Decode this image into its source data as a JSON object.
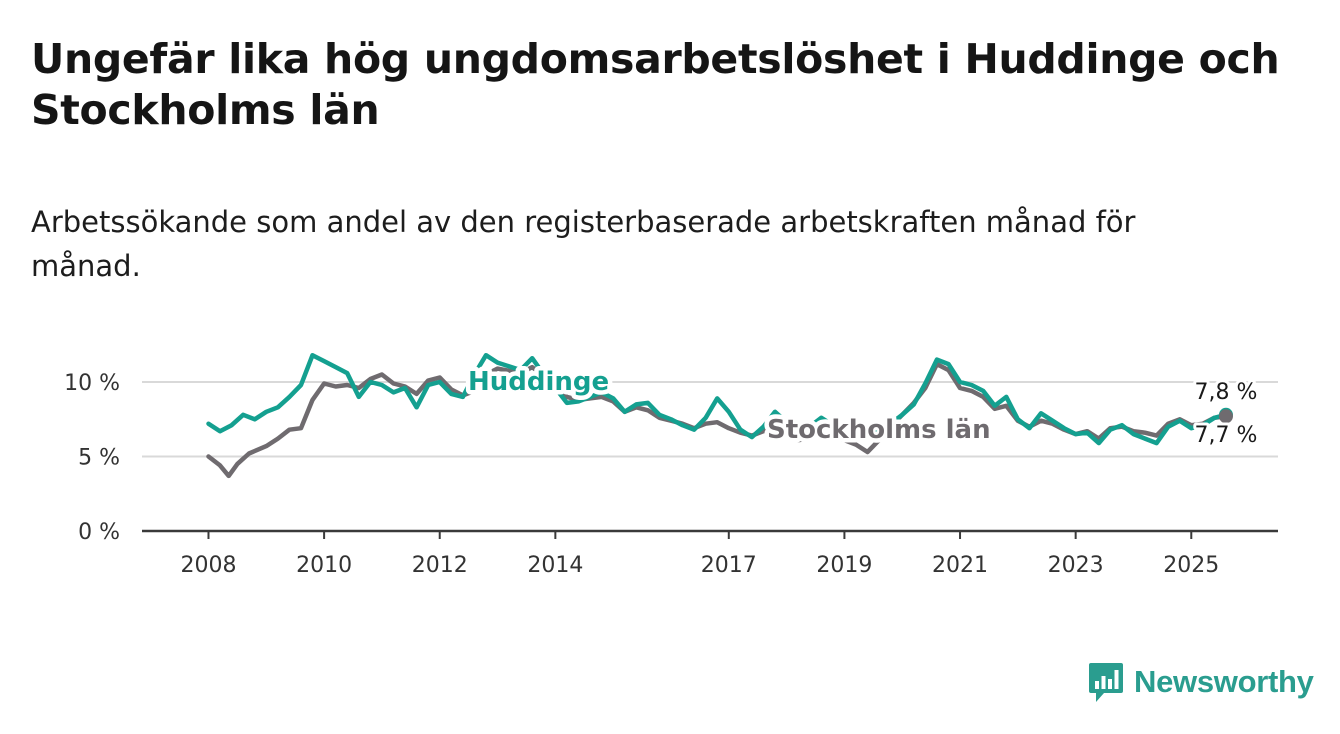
{
  "title": "Ungefär lika hög ungdomsarbetslöshet i Huddinge och Stockholms län",
  "subtitle": "Arbetssökande som andel av den registerbaserade arbetskraften månad för månad.",
  "brand": {
    "name": "Newsworthy",
    "icon": "bar-chart-logo-icon",
    "color": "#2a9d8f"
  },
  "chart_data": {
    "type": "line",
    "x_unit": "year",
    "xlim": [
      2006.85,
      2026.5
    ],
    "ylim": [
      0,
      10
    ],
    "x_ticks": [
      {
        "value": 2008,
        "label": "2008"
      },
      {
        "value": 2010,
        "label": "2010"
      },
      {
        "value": 2012,
        "label": "2012"
      },
      {
        "value": 2014,
        "label": "2014"
      },
      {
        "value": 2017,
        "label": "2017"
      },
      {
        "value": 2019,
        "label": "2019"
      },
      {
        "value": 2021,
        "label": "2021"
      },
      {
        "value": 2023,
        "label": "2023"
      },
      {
        "value": 2025,
        "label": "2025"
      }
    ],
    "y_ticks": [
      {
        "value": 0,
        "label": "0 %"
      },
      {
        "value": 5,
        "label": "5 %"
      },
      {
        "value": 10,
        "label": "10 %"
      }
    ],
    "grid": true,
    "series": [
      {
        "name": "Huddinge",
        "label": "Huddinge",
        "color": "#14a090",
        "end_label": "7,8 %",
        "points": [
          [
            2008.0,
            7.2
          ],
          [
            2008.2,
            6.7
          ],
          [
            2008.4,
            7.1
          ],
          [
            2008.6,
            7.8
          ],
          [
            2008.8,
            7.5
          ],
          [
            2009.0,
            8.0
          ],
          [
            2009.2,
            8.3
          ],
          [
            2009.4,
            9.0
          ],
          [
            2009.6,
            9.8
          ],
          [
            2009.8,
            11.8
          ],
          [
            2010.0,
            11.4
          ],
          [
            2010.2,
            11.0
          ],
          [
            2010.4,
            10.6
          ],
          [
            2010.6,
            9.0
          ],
          [
            2010.8,
            10.0
          ],
          [
            2011.0,
            9.8
          ],
          [
            2011.2,
            9.3
          ],
          [
            2011.4,
            9.6
          ],
          [
            2011.6,
            8.3
          ],
          [
            2011.8,
            9.8
          ],
          [
            2012.0,
            10.0
          ],
          [
            2012.2,
            9.2
          ],
          [
            2012.4,
            9.0
          ],
          [
            2012.6,
            10.5
          ],
          [
            2012.8,
            11.8
          ],
          [
            2013.0,
            11.3
          ],
          [
            2013.4,
            10.8
          ],
          [
            2013.6,
            11.6
          ],
          [
            2013.8,
            10.5
          ],
          [
            2014.0,
            9.6
          ],
          [
            2014.2,
            8.6
          ],
          [
            2014.4,
            8.7
          ],
          [
            2014.6,
            9.0
          ],
          [
            2014.8,
            9.3
          ],
          [
            2015.0,
            8.9
          ],
          [
            2015.2,
            8.0
          ],
          [
            2015.4,
            8.5
          ],
          [
            2015.6,
            8.6
          ],
          [
            2015.8,
            7.8
          ],
          [
            2016.0,
            7.5
          ],
          [
            2016.2,
            7.1
          ],
          [
            2016.4,
            6.8
          ],
          [
            2016.6,
            7.6
          ],
          [
            2016.8,
            8.9
          ],
          [
            2017.0,
            8.0
          ],
          [
            2017.2,
            6.8
          ],
          [
            2017.4,
            6.3
          ],
          [
            2017.6,
            7.0
          ],
          [
            2017.8,
            8.0
          ],
          [
            2018.0,
            7.3
          ],
          [
            2018.2,
            7.0
          ],
          [
            2018.4,
            7.0
          ],
          [
            2018.6,
            7.6
          ],
          [
            2018.8,
            7.1
          ],
          [
            2019.0,
            7.1
          ],
          [
            2019.2,
            6.9
          ],
          [
            2019.4,
            6.8
          ],
          [
            2019.6,
            6.6
          ],
          [
            2019.8,
            7.2
          ],
          [
            2020.0,
            7.8
          ],
          [
            2020.2,
            8.5
          ],
          [
            2020.4,
            9.9
          ],
          [
            2020.6,
            11.5
          ],
          [
            2020.8,
            11.2
          ],
          [
            2021.0,
            10.0
          ],
          [
            2021.2,
            9.8
          ],
          [
            2021.4,
            9.4
          ],
          [
            2021.6,
            8.4
          ],
          [
            2021.8,
            9.0
          ],
          [
            2022.0,
            7.5
          ],
          [
            2022.2,
            6.9
          ],
          [
            2022.4,
            7.9
          ],
          [
            2022.6,
            7.4
          ],
          [
            2022.8,
            6.9
          ],
          [
            2023.0,
            6.5
          ],
          [
            2023.2,
            6.6
          ],
          [
            2023.4,
            5.9
          ],
          [
            2023.6,
            6.8
          ],
          [
            2023.8,
            7.1
          ],
          [
            2024.0,
            6.5
          ],
          [
            2024.2,
            6.2
          ],
          [
            2024.4,
            5.9
          ],
          [
            2024.6,
            7.0
          ],
          [
            2024.8,
            7.4
          ],
          [
            2025.0,
            6.9
          ],
          [
            2025.2,
            7.1
          ],
          [
            2025.4,
            7.6
          ],
          [
            2025.6,
            7.8
          ]
        ]
      },
      {
        "name": "Stockholms län",
        "label": "Stockholms län",
        "color": "#6f6b6f",
        "end_label": "7,7 %",
        "points": [
          [
            2008.0,
            5.0
          ],
          [
            2008.2,
            4.4
          ],
          [
            2008.35,
            3.7
          ],
          [
            2008.5,
            4.5
          ],
          [
            2008.7,
            5.2
          ],
          [
            2009.0,
            5.7
          ],
          [
            2009.2,
            6.2
          ],
          [
            2009.4,
            6.8
          ],
          [
            2009.6,
            6.9
          ],
          [
            2009.8,
            8.8
          ],
          [
            2010.0,
            9.9
          ],
          [
            2010.2,
            9.7
          ],
          [
            2010.4,
            9.8
          ],
          [
            2010.6,
            9.6
          ],
          [
            2010.8,
            10.2
          ],
          [
            2011.0,
            10.5
          ],
          [
            2011.2,
            9.9
          ],
          [
            2011.4,
            9.7
          ],
          [
            2011.6,
            9.2
          ],
          [
            2011.8,
            10.1
          ],
          [
            2012.0,
            10.3
          ],
          [
            2012.2,
            9.5
          ],
          [
            2012.4,
            9.1
          ],
          [
            2012.6,
            9.4
          ],
          [
            2012.8,
            10.5
          ],
          [
            2013.0,
            10.9
          ],
          [
            2013.4,
            10.6
          ],
          [
            2013.6,
            11.0
          ],
          [
            2013.8,
            10.4
          ],
          [
            2014.0,
            9.5
          ],
          [
            2014.2,
            9.0
          ],
          [
            2014.4,
            8.8
          ],
          [
            2014.6,
            8.9
          ],
          [
            2014.8,
            9.0
          ],
          [
            2015.0,
            8.7
          ],
          [
            2015.2,
            8.0
          ],
          [
            2015.4,
            8.3
          ],
          [
            2015.6,
            8.1
          ],
          [
            2015.8,
            7.6
          ],
          [
            2016.0,
            7.4
          ],
          [
            2016.2,
            7.2
          ],
          [
            2016.4,
            6.9
          ],
          [
            2016.6,
            7.2
          ],
          [
            2016.8,
            7.3
          ],
          [
            2017.0,
            6.9
          ],
          [
            2017.2,
            6.6
          ],
          [
            2017.4,
            6.4
          ],
          [
            2017.6,
            6.7
          ],
          [
            2017.8,
            6.9
          ],
          [
            2018.0,
            6.4
          ],
          [
            2018.2,
            6.1
          ],
          [
            2018.4,
            6.2
          ],
          [
            2018.6,
            6.6
          ],
          [
            2018.8,
            6.3
          ],
          [
            2019.0,
            6.1
          ],
          [
            2019.2,
            5.8
          ],
          [
            2019.4,
            5.3
          ],
          [
            2019.6,
            6.1
          ],
          [
            2019.8,
            7.0
          ],
          [
            2020.0,
            7.8
          ],
          [
            2020.2,
            8.6
          ],
          [
            2020.4,
            9.6
          ],
          [
            2020.6,
            11.2
          ],
          [
            2020.8,
            10.8
          ],
          [
            2021.0,
            9.6
          ],
          [
            2021.2,
            9.4
          ],
          [
            2021.4,
            9.0
          ],
          [
            2021.6,
            8.2
          ],
          [
            2021.8,
            8.4
          ],
          [
            2022.0,
            7.4
          ],
          [
            2022.2,
            7.0
          ],
          [
            2022.4,
            7.4
          ],
          [
            2022.6,
            7.2
          ],
          [
            2022.8,
            6.8
          ],
          [
            2023.0,
            6.5
          ],
          [
            2023.2,
            6.7
          ],
          [
            2023.4,
            6.2
          ],
          [
            2023.6,
            6.9
          ],
          [
            2023.8,
            7.0
          ],
          [
            2024.0,
            6.7
          ],
          [
            2024.2,
            6.6
          ],
          [
            2024.4,
            6.4
          ],
          [
            2024.6,
            7.2
          ],
          [
            2024.8,
            7.5
          ],
          [
            2025.0,
            7.1
          ],
          [
            2025.2,
            7.2
          ],
          [
            2025.4,
            7.6
          ],
          [
            2025.6,
            7.7
          ]
        ]
      }
    ]
  }
}
